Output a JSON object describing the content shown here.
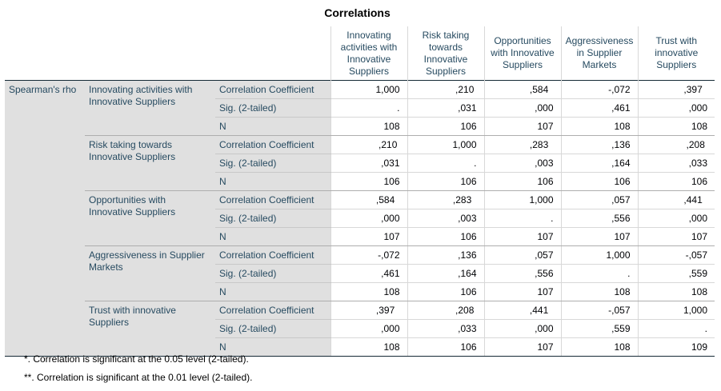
{
  "title": "Correlations",
  "header": {
    "columns": [
      "Innovating activities with Innovative Suppliers",
      "Risk taking towards Innovative Suppliers",
      "Opportunities with Innovative Suppliers",
      "Aggressiveness in Supplier Markets",
      "Trust with innovative Suppliers"
    ]
  },
  "method": "Spearman's rho",
  "stat_labels": [
    "Correlation Coefficient",
    "Sig. (2-tailed)",
    "N"
  ],
  "variables": [
    {
      "name": "Innovating activities with Innovative Suppliers",
      "corr": [
        [
          "1,000",
          ""
        ],
        [
          ",210",
          "*"
        ],
        [
          ",584",
          "**"
        ],
        [
          "-,072",
          ""
        ],
        [
          ",397",
          "**"
        ]
      ],
      "sig": [
        ".",
        ",031",
        ",000",
        ",461",
        ",000"
      ],
      "n": [
        "108",
        "106",
        "107",
        "108",
        "108"
      ]
    },
    {
      "name": "Risk taking towards Innovative Suppliers",
      "corr": [
        [
          ",210",
          "*"
        ],
        [
          "1,000",
          ""
        ],
        [
          ",283",
          "**"
        ],
        [
          ",136",
          ""
        ],
        [
          ",208",
          "*"
        ]
      ],
      "sig": [
        ",031",
        ".",
        ",003",
        ",164",
        ",033"
      ],
      "n": [
        "106",
        "106",
        "106",
        "106",
        "106"
      ]
    },
    {
      "name": "Opportunities with Innovative Suppliers",
      "corr": [
        [
          ",584",
          "**"
        ],
        [
          ",283",
          "**"
        ],
        [
          "1,000",
          ""
        ],
        [
          ",057",
          ""
        ],
        [
          ",441",
          "**"
        ]
      ],
      "sig": [
        ",000",
        ",003",
        ".",
        ",556",
        ",000"
      ],
      "n": [
        "107",
        "106",
        "107",
        "107",
        "107"
      ]
    },
    {
      "name": "Aggressiveness in Supplier Markets",
      "corr": [
        [
          "-,072",
          ""
        ],
        [
          ",136",
          ""
        ],
        [
          ",057",
          ""
        ],
        [
          "1,000",
          ""
        ],
        [
          "-,057",
          ""
        ]
      ],
      "sig": [
        ",461",
        ",164",
        ",556",
        ".",
        ",559"
      ],
      "n": [
        "108",
        "106",
        "107",
        "108",
        "108"
      ]
    },
    {
      "name": "Trust with innovative Suppliers",
      "corr": [
        [
          ",397",
          "**"
        ],
        [
          ",208",
          "*"
        ],
        [
          ",441",
          "**"
        ],
        [
          "-,057",
          ""
        ],
        [
          "1,000",
          ""
        ]
      ],
      "sig": [
        ",000",
        ",033",
        ",000",
        ",559",
        "."
      ],
      "n": [
        "108",
        "106",
        "107",
        "108",
        "109"
      ]
    }
  ],
  "footnotes": [
    "*. Correlation is significant at the 0.05 level (2-tailed).",
    "**. Correlation is significant at the 0.01 level (2-tailed)."
  ]
}
